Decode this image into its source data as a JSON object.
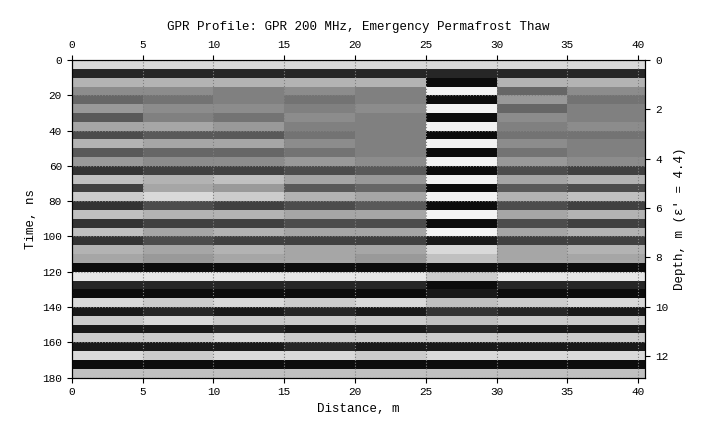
{
  "chart_data": {
    "type": "heatmap",
    "title": "GPR Profile: GPR 200 MHz, Emergency Permafrost Thaw",
    "x_label": "Distance, m",
    "y_label": "Time, ns",
    "y2_label": "Depth, m (ε' = 4.4)",
    "x_edges": [
      0,
      5,
      10,
      15,
      20,
      25,
      30,
      35,
      40.5
    ],
    "y_edges": [
      0,
      5,
      10,
      15,
      20,
      25,
      30,
      35,
      40,
      45,
      50,
      55,
      60,
      65,
      70,
      75,
      80,
      85,
      90,
      95,
      100,
      105,
      110,
      115,
      120,
      125,
      130,
      135,
      140,
      145,
      150,
      155,
      160,
      165,
      170,
      175,
      180
    ],
    "cells": [
      [
        0.7,
        0.7,
        0.7,
        0.7,
        0.7,
        0.7,
        0.7,
        0.7
      ],
      [
        -0.7,
        -0.7,
        -0.7,
        -0.7,
        -0.7,
        -0.7,
        -0.7,
        -0.7
      ],
      [
        0.4,
        0.4,
        0.4,
        0.4,
        0.4,
        -0.9,
        0.4,
        0.4
      ],
      [
        0.1,
        0.1,
        0.0,
        0.1,
        0.0,
        0.9,
        -0.2,
        0.1
      ],
      [
        -0.2,
        -0.1,
        0.0,
        -0.1,
        0.0,
        -0.9,
        0.2,
        -0.1
      ],
      [
        0.2,
        0.1,
        0.1,
        0.0,
        0.1,
        0.9,
        -0.2,
        0.0
      ],
      [
        -0.3,
        0.0,
        -0.1,
        0.1,
        0.0,
        -0.9,
        0.1,
        0.0
      ],
      [
        0.3,
        0.3,
        0.2,
        0.0,
        0.0,
        0.9,
        0.0,
        0.1
      ],
      [
        -0.4,
        -0.3,
        -0.3,
        -0.1,
        0.0,
        -0.9,
        -0.1,
        -0.1
      ],
      [
        0.4,
        0.3,
        0.3,
        0.1,
        0.0,
        0.9,
        0.1,
        0.0
      ],
      [
        -0.3,
        -0.2,
        -0.2,
        -0.1,
        0.0,
        -0.9,
        -0.1,
        0.0
      ],
      [
        0.2,
        0.1,
        0.1,
        0.2,
        0.1,
        0.9,
        0.2,
        0.1
      ],
      [
        -0.6,
        -0.5,
        -0.5,
        -0.4,
        -0.3,
        -0.9,
        -0.4,
        -0.5
      ],
      [
        0.5,
        0.4,
        0.5,
        0.3,
        0.2,
        0.9,
        0.3,
        0.4
      ],
      [
        -0.5,
        0.3,
        0.2,
        -0.3,
        -0.2,
        -0.9,
        -0.3,
        -0.4
      ],
      [
        0.6,
        0.7,
        0.6,
        0.4,
        0.3,
        0.9,
        0.4,
        0.5
      ],
      [
        -0.6,
        -0.4,
        -0.5,
        -0.4,
        -0.3,
        -0.9,
        -0.4,
        -0.5
      ],
      [
        0.5,
        0.4,
        0.4,
        0.3,
        0.3,
        0.9,
        0.3,
        0.4
      ],
      [
        -0.6,
        -0.5,
        -0.5,
        -0.4,
        -0.4,
        -0.9,
        -0.4,
        -0.5
      ],
      [
        0.5,
        0.3,
        0.4,
        0.3,
        0.3,
        0.9,
        0.3,
        0.4
      ],
      [
        -0.6,
        -0.4,
        -0.5,
        -0.5,
        -0.5,
        -0.8,
        -0.5,
        -0.5
      ],
      [
        0.4,
        0.3,
        0.4,
        0.3,
        0.3,
        0.7,
        0.3,
        0.4
      ],
      [
        0.3,
        0.2,
        0.3,
        0.3,
        0.2,
        0.5,
        0.3,
        0.3
      ],
      [
        -0.9,
        -0.9,
        -0.9,
        -0.9,
        -0.9,
        -0.9,
        -0.9,
        -0.9
      ],
      [
        0.8,
        0.8,
        0.8,
        0.8,
        0.8,
        0.6,
        0.8,
        0.8
      ],
      [
        -0.7,
        -0.7,
        -0.7,
        -0.7,
        -0.7,
        -0.9,
        -0.7,
        -0.7
      ],
      [
        -0.9,
        -0.9,
        -0.9,
        -0.9,
        -0.9,
        -0.8,
        -0.9,
        -0.9
      ],
      [
        0.7,
        0.6,
        0.7,
        0.6,
        0.7,
        0.5,
        0.6,
        0.7
      ],
      [
        -0.8,
        -0.7,
        -0.8,
        -0.7,
        -0.8,
        -0.6,
        -0.7,
        -0.8
      ],
      [
        0.6,
        0.7,
        0.6,
        0.6,
        0.6,
        0.5,
        0.6,
        0.6
      ],
      [
        -0.8,
        -0.8,
        -0.7,
        -0.8,
        -0.8,
        -0.7,
        -0.8,
        -0.8
      ],
      [
        0.6,
        0.6,
        0.7,
        0.6,
        0.6,
        0.6,
        0.6,
        0.6
      ],
      [
        -0.8,
        -0.8,
        -0.8,
        -0.7,
        -0.8,
        -0.8,
        -0.8,
        -0.8
      ],
      [
        0.7,
        0.6,
        0.7,
        0.7,
        0.6,
        0.7,
        0.7,
        0.7
      ],
      [
        -0.9,
        -0.9,
        -0.9,
        -0.9,
        -0.9,
        -0.9,
        -0.9,
        -0.9
      ],
      [
        0.5,
        0.5,
        0.5,
        0.5,
        0.5,
        0.5,
        0.5,
        0.5
      ]
    ],
    "clim": [
      -1,
      1
    ],
    "xlim": [
      0,
      40.5
    ],
    "xticks": [
      0,
      5,
      10,
      15,
      20,
      25,
      30,
      35,
      40
    ],
    "ylim": [
      180,
      0
    ],
    "yticks": [
      0,
      20,
      40,
      60,
      80,
      100,
      120,
      140,
      160,
      180
    ],
    "y2lim": [
      12.87,
      0
    ],
    "y2ticks": [
      0,
      2,
      4,
      6,
      8,
      10,
      12
    ],
    "grid": true
  }
}
